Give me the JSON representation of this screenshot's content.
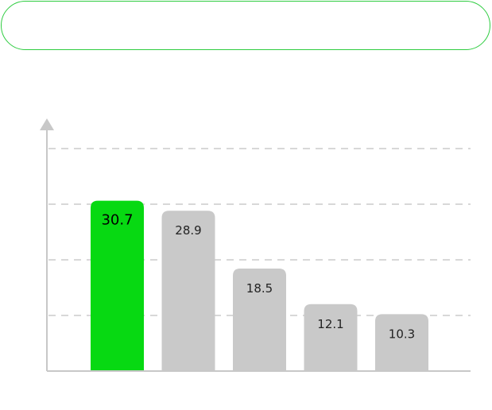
{
  "header": {
    "text": ""
  },
  "colors": {
    "highlight_bar": "#07d912",
    "bar": "#c9c9c9",
    "header_border": "#2ecc40",
    "axis": "#c8c8c8",
    "grid": "#cccccc",
    "highlight_label": "#000000",
    "label": "#222222"
  },
  "chart_data": {
    "type": "bar",
    "categories": [
      "",
      "",
      "",
      "",
      ""
    ],
    "values": [
      30.7,
      28.9,
      18.5,
      12.1,
      10.3
    ],
    "value_labels": [
      "30.7",
      "28.9",
      "18.5",
      "12.1",
      "10.3"
    ],
    "highlight_index": 0,
    "ylim": [
      0,
      40
    ],
    "grid": true,
    "title": "",
    "xlabel": "",
    "ylabel": ""
  }
}
